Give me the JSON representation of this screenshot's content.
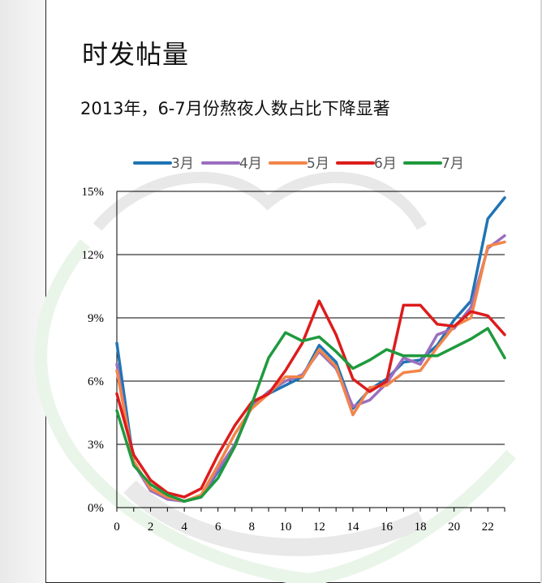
{
  "page": {
    "title": "时发帖量",
    "subtitle": "2013年，6-7月份熬夜人数占比下降显著"
  },
  "colors": {
    "series": [
      "#1f74b4",
      "#9b6fbf",
      "#f2854a",
      "#dd1c1c",
      "#1f9a3e"
    ],
    "gridline": "#000000",
    "watermark": "#e6e6e6"
  },
  "chart_data": {
    "type": "line",
    "title": "",
    "xlabel": "",
    "ylabel": "",
    "x": [
      0,
      1,
      2,
      3,
      4,
      5,
      6,
      7,
      8,
      9,
      10,
      11,
      12,
      13,
      14,
      15,
      16,
      17,
      18,
      19,
      20,
      21,
      22,
      23
    ],
    "x_tick_labels": [
      "0",
      "2",
      "4",
      "6",
      "8",
      "10",
      "12",
      "14",
      "16",
      "18",
      "20",
      "22"
    ],
    "x_tick_values": [
      0,
      2,
      4,
      6,
      8,
      10,
      12,
      14,
      16,
      18,
      20,
      22
    ],
    "y_tick_labels": [
      "0%",
      "3%",
      "6%",
      "9%",
      "12%",
      "15%"
    ],
    "y_tick_values": [
      0,
      3,
      6,
      9,
      12,
      15
    ],
    "ylim": [
      0,
      15
    ],
    "xlim": [
      0,
      23
    ],
    "grid": true,
    "legend_position": "top",
    "series": [
      {
        "name": "3月",
        "values": [
          7.8,
          2.1,
          0.9,
          0.4,
          0.3,
          0.5,
          1.7,
          3.0,
          4.8,
          5.4,
          5.8,
          6.2,
          7.7,
          6.9,
          4.7,
          5.6,
          6.1,
          6.9,
          7.0,
          7.7,
          8.9,
          9.8,
          13.7,
          14.7
        ]
      },
      {
        "name": "4月",
        "values": [
          6.8,
          2.1,
          0.8,
          0.4,
          0.3,
          0.5,
          1.8,
          3.0,
          4.8,
          5.5,
          6.0,
          6.3,
          7.4,
          6.6,
          4.8,
          5.1,
          5.9,
          7.1,
          6.8,
          8.2,
          8.5,
          9.5,
          12.3,
          12.9
        ]
      },
      {
        "name": "5月",
        "values": [
          6.5,
          2.2,
          0.9,
          0.5,
          0.3,
          0.6,
          2.0,
          3.5,
          4.7,
          5.4,
          6.2,
          6.2,
          7.5,
          6.7,
          4.4,
          5.7,
          5.8,
          6.4,
          6.5,
          7.6,
          8.6,
          9.0,
          12.4,
          12.6
        ]
      },
      {
        "name": "6月",
        "values": [
          5.4,
          2.5,
          1.3,
          0.7,
          0.5,
          0.9,
          2.5,
          3.9,
          5.0,
          5.4,
          6.5,
          7.8,
          9.8,
          8.2,
          6.1,
          5.5,
          6.0,
          9.6,
          9.6,
          8.7,
          8.6,
          9.3,
          9.1,
          8.2
        ]
      },
      {
        "name": "7月",
        "values": [
          4.6,
          2.0,
          1.1,
          0.6,
          0.3,
          0.5,
          1.4,
          2.9,
          4.9,
          7.1,
          8.3,
          7.9,
          8.1,
          7.4,
          6.6,
          7.0,
          7.5,
          7.2,
          7.2,
          7.2,
          7.6,
          8.0,
          8.5,
          7.1
        ]
      }
    ]
  }
}
